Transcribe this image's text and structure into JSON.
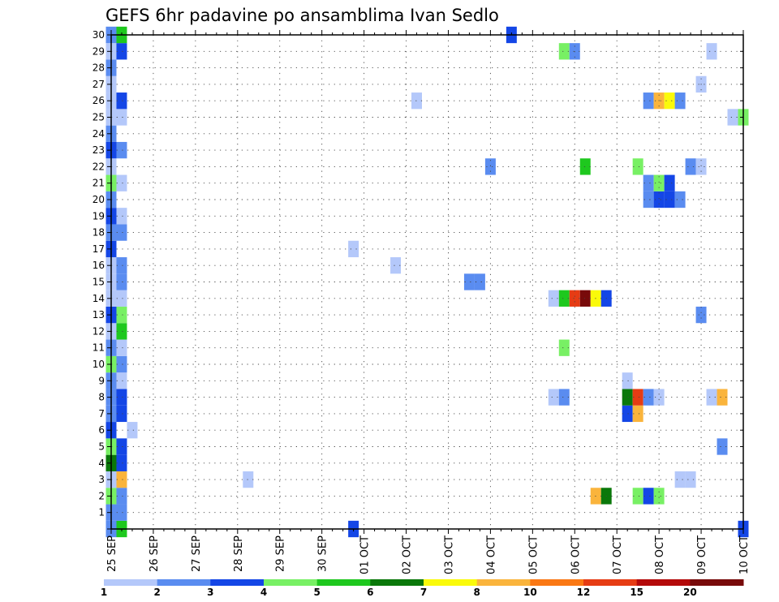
{
  "chart_data": {
    "type": "heatmap",
    "title": "GEFS 6hr padavine po ansamblima Ivan Sedlo",
    "y_ticks": [
      "1",
      "2",
      "3",
      "4",
      "5",
      "6",
      "7",
      "8",
      "9",
      "10",
      "11",
      "12",
      "13",
      "14",
      "15",
      "16",
      "17",
      "18",
      "19",
      "20",
      "21",
      "22",
      "23",
      "24",
      "25",
      "26",
      "27",
      "28",
      "29",
      "30"
    ],
    "x_ticks": [
      "25 SEP",
      "26 SEP",
      "27 SEP",
      "28 SEP",
      "29 SEP",
      "30 SEP",
      "01 OCT",
      "02 OCT",
      "03 OCT",
      "04 OCT",
      "05 OCT",
      "06 OCT",
      "07 OCT",
      "08 OCT",
      "09 OCT",
      "10 OCT"
    ],
    "x_range_days": [
      0,
      15
    ],
    "y_range": [
      0,
      30
    ],
    "grid": true,
    "colorbar": {
      "labels": [
        "1",
        "2",
        "3",
        "4",
        "5",
        "6",
        "7",
        "8",
        "10",
        "12",
        "15",
        "20"
      ],
      "colors": [
        "#b4c8fa",
        "#5a8cf0",
        "#1446e6",
        "#78f064",
        "#1ec81e",
        "#0a780a",
        "#fafa0a",
        "#fab43c",
        "#fa7814",
        "#e63c14",
        "#b40a0a",
        "#780a0a"
      ]
    },
    "values_key": "bin index 1-12 into colorbar colors; step t = day offset from 25 SEP in 6-hour steps (x = t/4)",
    "cells": [
      [
        0,
        0,
        2
      ],
      [
        1,
        0,
        5
      ],
      [
        23,
        0,
        3
      ],
      [
        60,
        0,
        3
      ],
      [
        0,
        1,
        2
      ],
      [
        1,
        1,
        2
      ],
      [
        0,
        2,
        4
      ],
      [
        1,
        2,
        2
      ],
      [
        46,
        2,
        8
      ],
      [
        47,
        2,
        6
      ],
      [
        50,
        2,
        4
      ],
      [
        51,
        2,
        3
      ],
      [
        52,
        2,
        4
      ],
      [
        0,
        3,
        1
      ],
      [
        1,
        3,
        8
      ],
      [
        13,
        3,
        1
      ],
      [
        54,
        3,
        1
      ],
      [
        55,
        3,
        1
      ],
      [
        0,
        4,
        6
      ],
      [
        1,
        4,
        3
      ],
      [
        0,
        5,
        4
      ],
      [
        1,
        5,
        3
      ],
      [
        58,
        5,
        2
      ],
      [
        0,
        6,
        3
      ],
      [
        2,
        6,
        1
      ],
      [
        0,
        7,
        2
      ],
      [
        1,
        7,
        3
      ],
      [
        49,
        7,
        3
      ],
      [
        50,
        7,
        8
      ],
      [
        0,
        8,
        2
      ],
      [
        1,
        8,
        3
      ],
      [
        42,
        8,
        1
      ],
      [
        43,
        8,
        2
      ],
      [
        49,
        8,
        6
      ],
      [
        50,
        8,
        10
      ],
      [
        51,
        8,
        2
      ],
      [
        52,
        8,
        1
      ],
      [
        57,
        8,
        1
      ],
      [
        58,
        8,
        8
      ],
      [
        0,
        9,
        2
      ],
      [
        1,
        9,
        1
      ],
      [
        49,
        9,
        1
      ],
      [
        0,
        10,
        4
      ],
      [
        1,
        10,
        2
      ],
      [
        0,
        11,
        2
      ],
      [
        1,
        11,
        1
      ],
      [
        43,
        11,
        4
      ],
      [
        0,
        12,
        1
      ],
      [
        1,
        12,
        5
      ],
      [
        0,
        13,
        3
      ],
      [
        1,
        13,
        4
      ],
      [
        56,
        13,
        2
      ],
      [
        0,
        14,
        1
      ],
      [
        1,
        14,
        1
      ],
      [
        42,
        14,
        1
      ],
      [
        43,
        14,
        5
      ],
      [
        44,
        14,
        10
      ],
      [
        45,
        14,
        12
      ],
      [
        46,
        14,
        7
      ],
      [
        47,
        14,
        3
      ],
      [
        0,
        15,
        1
      ],
      [
        1,
        15,
        2
      ],
      [
        34,
        15,
        2
      ],
      [
        35,
        15,
        2
      ],
      [
        0,
        16,
        1
      ],
      [
        1,
        16,
        2
      ],
      [
        27,
        16,
        1
      ],
      [
        0,
        17,
        3
      ],
      [
        23,
        17,
        1
      ],
      [
        0,
        18,
        2
      ],
      [
        1,
        18,
        2
      ],
      [
        0,
        19,
        3
      ],
      [
        1,
        19,
        1
      ],
      [
        0,
        20,
        2
      ],
      [
        51,
        20,
        2
      ],
      [
        52,
        20,
        3
      ],
      [
        53,
        20,
        3
      ],
      [
        54,
        20,
        2
      ],
      [
        0,
        21,
        4
      ],
      [
        1,
        21,
        1
      ],
      [
        51,
        21,
        2
      ],
      [
        52,
        21,
        4
      ],
      [
        53,
        21,
        3
      ],
      [
        0,
        22,
        1
      ],
      [
        36,
        22,
        2
      ],
      [
        45,
        22,
        5
      ],
      [
        50,
        22,
        4
      ],
      [
        55,
        22,
        2
      ],
      [
        56,
        22,
        1
      ],
      [
        0,
        23,
        3
      ],
      [
        1,
        23,
        2
      ],
      [
        0,
        24,
        2
      ],
      [
        0,
        25,
        1
      ],
      [
        1,
        25,
        1
      ],
      [
        59,
        25,
        1
      ],
      [
        60,
        25,
        4
      ],
      [
        0,
        26,
        1
      ],
      [
        1,
        26,
        3
      ],
      [
        29,
        26,
        1
      ],
      [
        51,
        26,
        2
      ],
      [
        52,
        26,
        8
      ],
      [
        53,
        26,
        7
      ],
      [
        54,
        26,
        2
      ],
      [
        0,
        27,
        1
      ],
      [
        56,
        27,
        1
      ],
      [
        0,
        28,
        2
      ],
      [
        0,
        29,
        1
      ],
      [
        1,
        29,
        3
      ],
      [
        43,
        29,
        4
      ],
      [
        44,
        29,
        2
      ],
      [
        57,
        29,
        1
      ],
      [
        0,
        30,
        2
      ],
      [
        1,
        30,
        5
      ],
      [
        38,
        30,
        3
      ]
    ]
  }
}
